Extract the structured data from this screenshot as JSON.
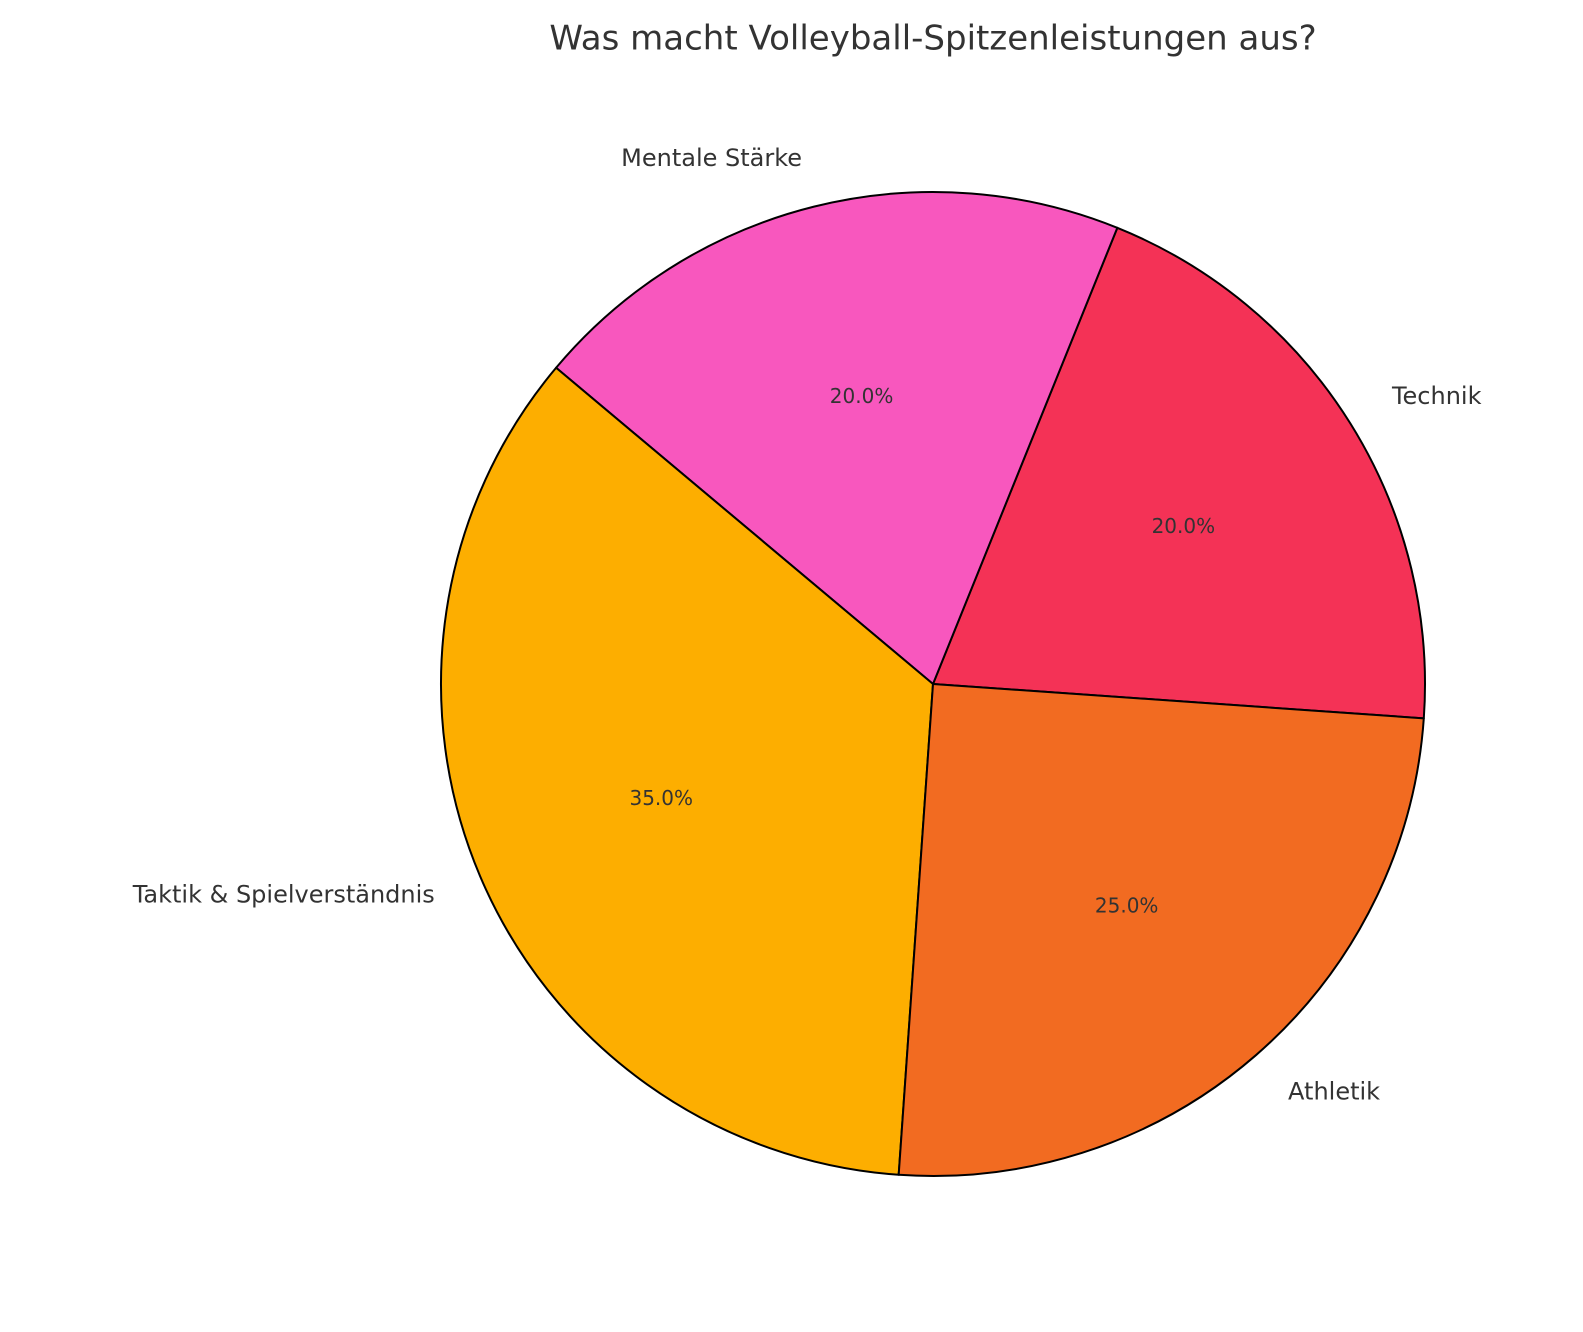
{
  "chart_data": {
    "type": "pie",
    "title": "Was macht Volleyball-Spitzenleistungen aus?",
    "categories": [
      "Technik",
      "Mentale Stärke",
      "Taktik & Spielverständnis",
      "Athletik"
    ],
    "values": [
      20,
      20,
      35,
      25
    ],
    "value_labels": [
      "20.0%",
      "20.0%",
      "35.0%",
      "25.0%"
    ],
    "colors": [
      "#f43256",
      "#f857be",
      "#fdae00",
      "#f26b21"
    ]
  }
}
